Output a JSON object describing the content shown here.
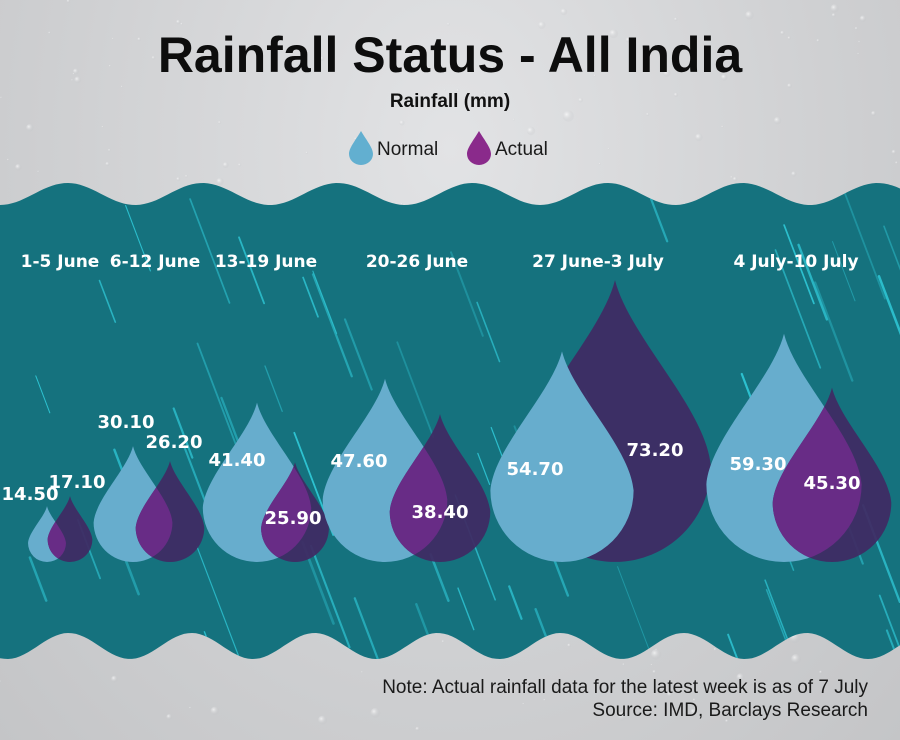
{
  "chart_data": {
    "type": "bar",
    "mark": "drop",
    "title": "Rainfall Status - All India",
    "subtitle": "Rainfall (mm)",
    "legend": [
      {
        "name": "Normal",
        "color": "#62afd0"
      },
      {
        "name": "Actual",
        "color": "#8a2a8b"
      }
    ],
    "legend_position": "top-center",
    "categories": [
      "1-5 June",
      "6-12 June",
      "13-19 June",
      "20-26 June",
      "27 June-3 July",
      "4 July-10 July"
    ],
    "series": [
      {
        "name": "Normal",
        "values": [
          14.5,
          30.1,
          41.4,
          47.6,
          54.7,
          59.3
        ],
        "labels": [
          "14.50",
          "30.10",
          "41.40",
          "47.60",
          "54.70",
          "59.30"
        ]
      },
      {
        "name": "Actual",
        "values": [
          17.1,
          26.2,
          25.9,
          38.4,
          73.2,
          45.3
        ],
        "labels": [
          "17.10",
          "26.20",
          "25.90",
          "38.40",
          "73.20",
          "45.30"
        ]
      }
    ],
    "xlabel": "",
    "ylabel": "Rainfall (mm)",
    "grid": false
  },
  "colors": {
    "normal": "#67adcd",
    "actual_dark": "#3f2a63",
    "actual_overlap": "#682c86",
    "panel": "#15727e",
    "streak": "#2fc7d6",
    "legend_normal": "#62afd0",
    "legend_actual": "#8a2a8b"
  },
  "footer": {
    "note": "Note: Actual rainfall data for the latest week is as of 7 July",
    "source": "Source: IMD, Barclays Research"
  }
}
